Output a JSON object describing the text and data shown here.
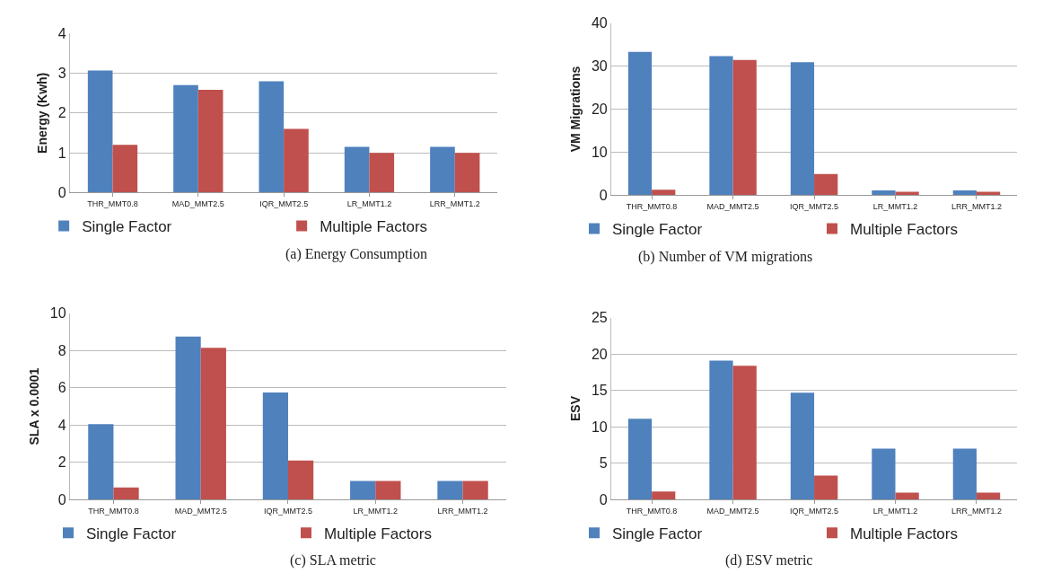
{
  "chart_data": [
    {
      "type": "bar",
      "ylabel": "Energy (Kwh)",
      "categories": [
        "THR_MMT0.8",
        "MAD_MMT2.5",
        "IQR_MMT2.5",
        "LR_MMT1.2",
        "LRR_MMT1.2"
      ],
      "series": [
        {
          "name": "Single Factor",
          "color": "#4f81bd",
          "values": [
            3.07,
            2.7,
            2.8,
            1.15,
            1.15
          ]
        },
        {
          "name": "Multiple Factors",
          "color": "#c0504d",
          "values": [
            1.2,
            2.58,
            1.6,
            1.0,
            1.0
          ]
        }
      ],
      "ylim": [
        0,
        4
      ],
      "yticks": [
        0,
        1,
        2,
        3,
        4
      ],
      "grid": "y",
      "legend": "bottom",
      "annotations": [
        "(a) Energy Consumption"
      ]
    },
    {
      "type": "bar",
      "ylabel": "VM Migrations",
      "categories": [
        "THR_MMT0.8",
        "MAD_MMT2.5",
        "IQR_MMT2.5",
        "LR_MMT1.2",
        "LRR_MMT1.2"
      ],
      "series": [
        {
          "name": "Single Factor",
          "color": "#4f81bd",
          "values": [
            33.3,
            32.3,
            30.9,
            1.1,
            1.1
          ]
        },
        {
          "name": "Multiple Factors",
          "color": "#c0504d",
          "values": [
            1.3,
            31.4,
            4.9,
            0.8,
            0.8
          ]
        }
      ],
      "ylim": [
        0,
        40
      ],
      "yticks": [
        0,
        10,
        20,
        30,
        40
      ],
      "grid": "y",
      "legend": "bottom",
      "annotations": [
        "(b) Number of VM migrations"
      ]
    },
    {
      "type": "bar",
      "ylabel": "SLA x 0.0001",
      "categories": [
        "THR_MMT0.8",
        "MAD_MMT2.5",
        "IQR_MMT2.5",
        "LR_MMT1.2",
        "LRR_MMT1.2"
      ],
      "series": [
        {
          "name": "Single Factor",
          "color": "#4f81bd",
          "values": [
            4.05,
            8.75,
            5.75,
            1.0,
            1.0
          ]
        },
        {
          "name": "Multiple Factors",
          "color": "#c0504d",
          "values": [
            0.65,
            8.15,
            2.1,
            1.0,
            1.0
          ]
        }
      ],
      "ylim": [
        0,
        10
      ],
      "yticks": [
        0,
        2,
        4,
        6,
        8,
        10
      ],
      "grid": "y",
      "legend": "bottom",
      "annotations": [
        "(c) SLA metric"
      ]
    },
    {
      "type": "bar",
      "ylabel": "ESV",
      "categories": [
        "THR_MMT0.8",
        "MAD_MMT2.5",
        "IQR_MMT2.5",
        "LR_MMT1.2",
        "LRR_MMT1.2"
      ],
      "series": [
        {
          "name": "Single Factor",
          "color": "#4f81bd",
          "values": [
            11.1,
            19.1,
            14.7,
            7.0,
            7.0
          ]
        },
        {
          "name": "Multiple Factors",
          "color": "#c0504d",
          "values": [
            1.1,
            18.4,
            3.3,
            0.95,
            0.95
          ]
        }
      ],
      "ylim": [
        0,
        25
      ],
      "yticks": [
        0,
        5,
        10,
        15,
        20,
        25
      ],
      "grid": "y",
      "legend": "bottom",
      "annotations": [
        "(d) ESV metric"
      ]
    }
  ]
}
